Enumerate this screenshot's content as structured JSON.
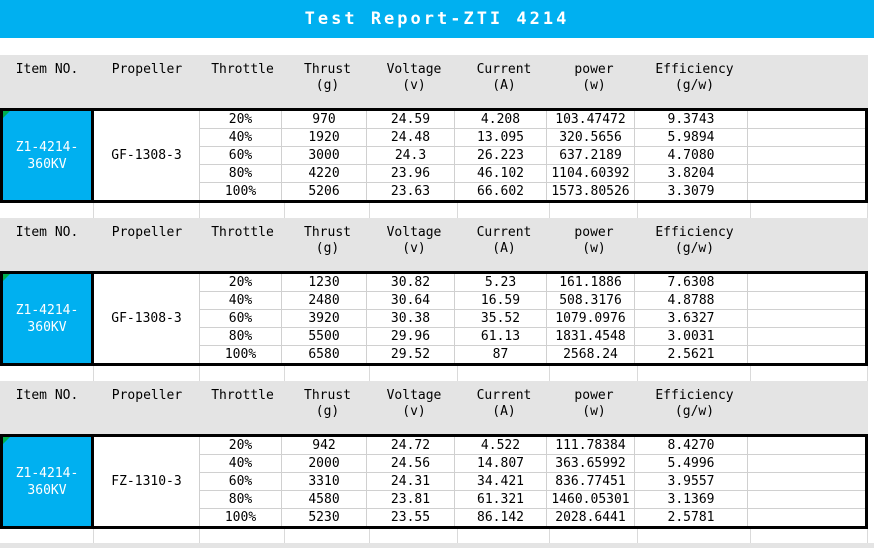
{
  "title": "Test Report-ZTI 4214",
  "colors": {
    "accent_blue": "#00B0F0",
    "header_gray": "#E4E4E4",
    "marker_green": "#00B050"
  },
  "columns": {
    "item": "Item NO.",
    "propeller": "Propeller",
    "throttle": "Throttle",
    "thrust": "Thrust",
    "thrust_unit": "(g)",
    "voltage": "Voltage",
    "voltage_unit": "(v)",
    "current": "Current",
    "current_unit": "(A)",
    "power": "power",
    "power_unit": "(w)",
    "efficiency": "Efficiency",
    "efficiency_unit": "(g/w)"
  },
  "tables": [
    {
      "item_no_line1": "Z1-4214-",
      "item_no_line2": "360KV",
      "propeller": "GF-1308-3",
      "rows": [
        {
          "throttle": "20%",
          "thrust": "970",
          "voltage": "24.59",
          "current": "4.208",
          "power": "103.47472",
          "efficiency": "9.3743"
        },
        {
          "throttle": "40%",
          "thrust": "1920",
          "voltage": "24.48",
          "current": "13.095",
          "power": "320.5656",
          "efficiency": "5.9894"
        },
        {
          "throttle": "60%",
          "thrust": "3000",
          "voltage": "24.3",
          "current": "26.223",
          "power": "637.2189",
          "efficiency": "4.7080"
        },
        {
          "throttle": "80%",
          "thrust": "4220",
          "voltage": "23.96",
          "current": "46.102",
          "power": "1104.60392",
          "efficiency": "3.8204"
        },
        {
          "throttle": "100%",
          "thrust": "5206",
          "voltage": "23.63",
          "current": "66.602",
          "power": "1573.80526",
          "efficiency": "3.3079"
        }
      ]
    },
    {
      "item_no_line1": "Z1-4214-",
      "item_no_line2": "360KV",
      "propeller": "GF-1308-3",
      "rows": [
        {
          "throttle": "20%",
          "thrust": "1230",
          "voltage": "30.82",
          "current": "5.23",
          "power": "161.1886",
          "efficiency": "7.6308"
        },
        {
          "throttle": "40%",
          "thrust": "2480",
          "voltage": "30.64",
          "current": "16.59",
          "power": "508.3176",
          "efficiency": "4.8788"
        },
        {
          "throttle": "60%",
          "thrust": "3920",
          "voltage": "30.38",
          "current": "35.52",
          "power": "1079.0976",
          "efficiency": "3.6327"
        },
        {
          "throttle": "80%",
          "thrust": "5500",
          "voltage": "29.96",
          "current": "61.13",
          "power": "1831.4548",
          "efficiency": "3.0031"
        },
        {
          "throttle": "100%",
          "thrust": "6580",
          "voltage": "29.52",
          "current": "87",
          "power": "2568.24",
          "efficiency": "2.5621"
        }
      ]
    },
    {
      "item_no_line1": "Z1-4214-",
      "item_no_line2": "360KV",
      "propeller": "FZ-1310-3",
      "rows": [
        {
          "throttle": "20%",
          "thrust": "942",
          "voltage": "24.72",
          "current": "4.522",
          "power": "111.78384",
          "efficiency": "8.4270"
        },
        {
          "throttle": "40%",
          "thrust": "2000",
          "voltage": "24.56",
          "current": "14.807",
          "power": "363.65992",
          "efficiency": "5.4996"
        },
        {
          "throttle": "60%",
          "thrust": "3310",
          "voltage": "24.31",
          "current": "34.421",
          "power": "836.77451",
          "efficiency": "3.9557"
        },
        {
          "throttle": "80%",
          "thrust": "4580",
          "voltage": "23.81",
          "current": "61.321",
          "power": "1460.05301",
          "efficiency": "3.1369"
        },
        {
          "throttle": "100%",
          "thrust": "5230",
          "voltage": "23.55",
          "current": "86.142",
          "power": "2028.6441",
          "efficiency": "2.5781"
        }
      ]
    }
  ]
}
